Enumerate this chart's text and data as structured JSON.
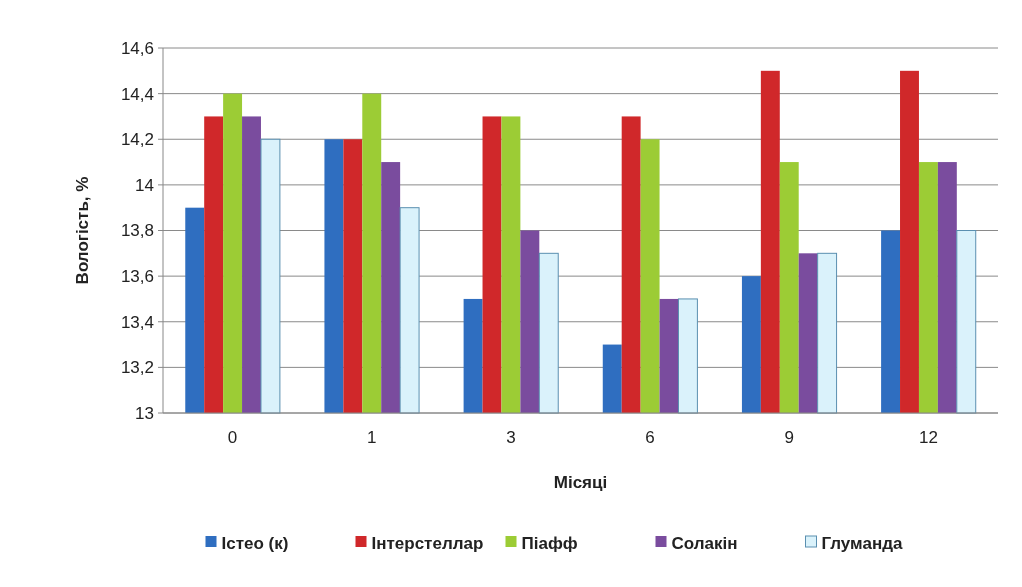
{
  "chart_data": {
    "type": "bar",
    "xlabel": "Місяці",
    "ylabel": "Вологість, %",
    "categories": [
      "0",
      "1",
      "3",
      "6",
      "9",
      "12"
    ],
    "series": [
      {
        "name": "Істео (к)",
        "color": "#2f6ec0",
        "values": [
          13.9,
          14.2,
          13.5,
          13.3,
          13.6,
          13.8
        ]
      },
      {
        "name": "Інтерстеллар",
        "color": "#d0282a",
        "values": [
          14.3,
          14.2,
          14.3,
          14.3,
          14.5,
          14.5
        ]
      },
      {
        "name": "Піафф",
        "color": "#9ccc35",
        "values": [
          14.4,
          14.4,
          14.3,
          14.2,
          14.1,
          14.1
        ]
      },
      {
        "name": "Солакін",
        "color": "#7a4c9e",
        "values": [
          14.3,
          14.1,
          13.8,
          13.5,
          13.7,
          14.1
        ]
      },
      {
        "name": "Глуманда",
        "color": "#daf2fb",
        "values": [
          14.2,
          13.9,
          13.7,
          13.5,
          13.7,
          13.8
        ]
      }
    ],
    "ylim": [
      13,
      14.6
    ],
    "yticks": [
      13,
      {
        "value": 13.2,
        "label": "13,2"
      },
      {
        "value": 13.4,
        "label": "13,4"
      },
      {
        "value": 13.6,
        "label": "13,6"
      },
      {
        "value": 13.8,
        "label": "13,8"
      },
      14,
      {
        "value": 14.2,
        "label": "14,2"
      },
      {
        "value": 14.4,
        "label": "14,4"
      },
      {
        "value": 14.6,
        "label": "14,6"
      }
    ],
    "grid": "y",
    "legend": "bottom"
  }
}
